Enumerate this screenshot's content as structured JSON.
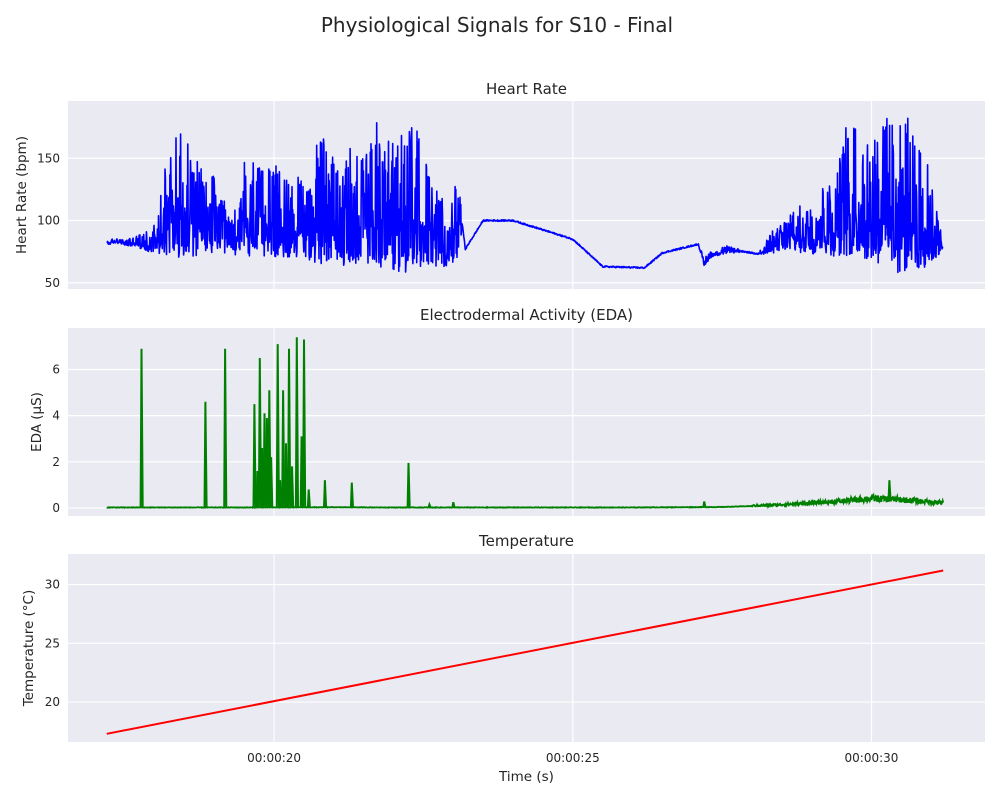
{
  "figure": {
    "title": "Physiological Signals for S10 - Final",
    "xlabel": "Time (s)",
    "x_ticks": [
      {
        "value": 20,
        "label": "00:00:20"
      },
      {
        "value": 25,
        "label": "00:00:25"
      },
      {
        "value": 30,
        "label": "00:00:30"
      }
    ]
  },
  "chart_data": [
    {
      "type": "line",
      "title": "Heart Rate",
      "ylabel": "Heart Rate (bpm)",
      "xlim": [
        16.55,
        31.9
      ],
      "ylim": [
        45,
        196
      ],
      "y_ticks": [
        50,
        100,
        150
      ],
      "grid": true,
      "color": "#0000ff",
      "series": [
        {
          "x": [
            17.2,
            17.35,
            17.5,
            17.65,
            17.8,
            17.9,
            18.05,
            18.2,
            18.3,
            18.45,
            18.6,
            18.75,
            18.9,
            19.05,
            19.2,
            19.35,
            19.5,
            19.65,
            19.8,
            19.95,
            20.1,
            20.25,
            20.4,
            20.55,
            20.7,
            20.85,
            21.0,
            21.15,
            21.3,
            21.45,
            21.6,
            21.75,
            21.9,
            22.05,
            22.2,
            22.35,
            22.5,
            22.65,
            22.8,
            22.95,
            23.1,
            23.15,
            23.2,
            23.5,
            24.0,
            25.0,
            25.5,
            26.2,
            26.5,
            27.1,
            27.2,
            27.3,
            27.6,
            28.0,
            28.1,
            28.3,
            28.5,
            28.8,
            29.0,
            29.2,
            29.4,
            29.6,
            29.8,
            30.0,
            30.2,
            30.4,
            30.6,
            30.8,
            31.0,
            31.2
          ],
          "y_min": [
            80,
            82,
            80,
            79,
            77,
            75,
            74,
            72,
            71,
            70,
            72,
            70,
            71,
            73,
            72,
            70,
            71,
            70,
            72,
            70,
            71,
            70,
            69,
            68,
            66,
            64,
            66,
            63,
            68,
            60,
            66,
            62,
            58,
            60,
            56,
            60,
            58,
            63,
            60,
            66,
            68,
            96,
            77,
            100,
            100,
            85,
            63,
            62,
            74,
            80,
            63,
            70,
            74,
            74,
            73,
            73,
            76,
            74,
            72,
            75,
            70,
            72,
            70,
            68,
            62,
            58,
            56,
            60,
            64,
            78
          ],
          "y_max": [
            84,
            86,
            84,
            88,
            90,
            92,
            104,
            150,
            172,
            170,
            165,
            148,
            140,
            135,
            110,
            112,
            148,
            150,
            148,
            146,
            142,
            140,
            135,
            130,
            165,
            168,
            160,
            140,
            165,
            148,
            172,
            185,
            175,
            182,
            190,
            178,
            158,
            130,
            122,
            112,
            142,
            100,
            77,
            100,
            100,
            85,
            63,
            62,
            74,
            82,
            70,
            75,
            80,
            74,
            73,
            90,
            98,
            112,
            120,
            128,
            132,
            190,
            170,
            172,
            185,
            178,
            186,
            160,
            140,
            80
          ]
        }
      ]
    },
    {
      "type": "line",
      "title": "Electrodermal Activity (EDA)",
      "ylabel": "EDA (μS)",
      "xlim": [
        16.55,
        31.9
      ],
      "ylim": [
        -0.35,
        7.8
      ],
      "y_ticks": [
        0,
        2,
        4,
        6
      ],
      "grid": true,
      "color": "#008000",
      "series": [
        {
          "baseline": [
            [
              17.2,
              0.02
            ],
            [
              19.5,
              0.02
            ],
            [
              21.0,
              0.03
            ],
            [
              22.0,
              0.02
            ],
            [
              23.0,
              0.02
            ],
            [
              24.5,
              0.02
            ],
            [
              26.0,
              0.02
            ],
            [
              27.5,
              0.04
            ],
            [
              28.0,
              0.08
            ],
            [
              28.5,
              0.12
            ],
            [
              29.0,
              0.18
            ],
            [
              29.5,
              0.25
            ],
            [
              30.0,
              0.35
            ],
            [
              30.5,
              0.3
            ],
            [
              31.0,
              0.22
            ],
            [
              31.2,
              0.2
            ]
          ],
          "spikes": [
            [
              17.78,
              6.9
            ],
            [
              18.85,
              4.6
            ],
            [
              19.18,
              6.9
            ],
            [
              19.67,
              4.5
            ],
            [
              19.72,
              1.6
            ],
            [
              19.76,
              6.5
            ],
            [
              19.8,
              2.6
            ],
            [
              19.84,
              4.1
            ],
            [
              19.88,
              3.9
            ],
            [
              19.92,
              5.1
            ],
            [
              19.95,
              2.2
            ],
            [
              20.06,
              7.1
            ],
            [
              20.1,
              1.2
            ],
            [
              20.15,
              5.1
            ],
            [
              20.2,
              2.8
            ],
            [
              20.25,
              6.9
            ],
            [
              20.3,
              1.8
            ],
            [
              20.38,
              7.4
            ],
            [
              20.46,
              3.1
            ],
            [
              20.5,
              7.3
            ],
            [
              20.58,
              0.8
            ],
            [
              20.85,
              1.2
            ],
            [
              21.3,
              1.1
            ],
            [
              22.25,
              1.95
            ],
            [
              22.6,
              0.15
            ],
            [
              23.0,
              0.25
            ],
            [
              27.2,
              0.28
            ],
            [
              30.3,
              1.2
            ]
          ]
        }
      ]
    },
    {
      "type": "line",
      "title": "Temperature",
      "ylabel": "Temperature (°C)",
      "xlim": [
        16.55,
        31.9
      ],
      "ylim": [
        16.6,
        32.6
      ],
      "y_ticks": [
        20,
        25,
        30
      ],
      "grid": true,
      "color": "#ff0000",
      "series": [
        {
          "x": [
            17.2,
            31.2
          ],
          "y": [
            17.3,
            31.2
          ]
        }
      ]
    }
  ]
}
